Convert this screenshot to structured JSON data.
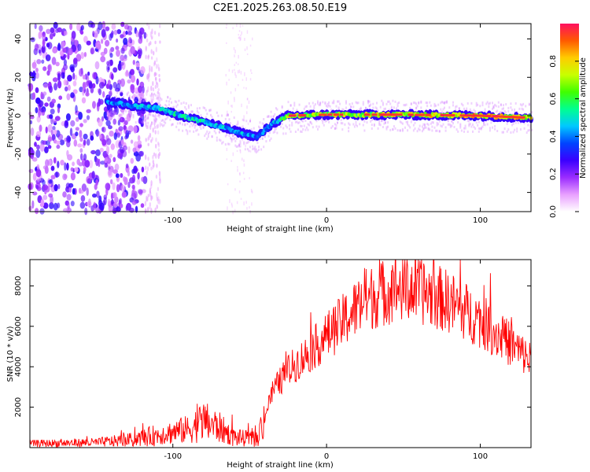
{
  "page_title": "C2E1.2025.263.08.50.E19",
  "chart_data": [
    {
      "type": "heatmap",
      "title": "C2E1.2025.263.08.50.E19",
      "xlabel": "Height of straight line (km)",
      "ylabel": "Frequency (Hz)",
      "xlim": [
        -193,
        133
      ],
      "ylim": [
        -50,
        48
      ],
      "xticks": [
        -100,
        0,
        100
      ],
      "yticks": [
        -40,
        -20,
        0,
        20,
        40
      ],
      "colorbar": {
        "label": "Normalized spectral amplitude",
        "range": [
          0,
          1
        ],
        "ticks": [
          "0.0",
          "0.2",
          "0.4",
          "0.6",
          "0.8"
        ],
        "tick_values": [
          0,
          0.2,
          0.4,
          0.6,
          0.8
        ],
        "colors": [
          "#ffffff",
          "#e9a0ff",
          "#9a2cff",
          "#3a00ff",
          "#0044ff",
          "#00c8ff",
          "#00ff90",
          "#40ff00",
          "#c8ff00",
          "#ffcc00",
          "#ff5a00",
          "#ff1060"
        ]
      },
      "feature_track": {
        "description_points": [
          {
            "x": -140,
            "y": 7,
            "amp": 0.45
          },
          {
            "x": -125,
            "y": 5,
            "amp": 0.5
          },
          {
            "x": -110,
            "y": 4,
            "amp": 0.55
          },
          {
            "x": -95,
            "y": 0,
            "amp": 0.55
          },
          {
            "x": -80,
            "y": -3,
            "amp": 0.55
          },
          {
            "x": -60,
            "y": -8,
            "amp": 0.5
          },
          {
            "x": -45,
            "y": -11,
            "amp": 0.45
          },
          {
            "x": -35,
            "y": -4,
            "amp": 0.45
          },
          {
            "x": -25,
            "y": 0,
            "amp": 0.8
          },
          {
            "x": 0,
            "y": 0.5,
            "amp": 0.75
          },
          {
            "x": 50,
            "y": 0.5,
            "amp": 0.8
          },
          {
            "x": 100,
            "y": 0,
            "amp": 0.9
          },
          {
            "x": 130,
            "y": -1,
            "amp": 0.8
          }
        ]
      }
    },
    {
      "type": "line",
      "xlabel": "Height of straight line (km)",
      "ylabel": "SNR (10 * v/v)",
      "xlim": [
        -193,
        133
      ],
      "ylim": [
        0,
        9300
      ],
      "xticks": [
        -100,
        0,
        100
      ],
      "yticks": [
        2000,
        4000,
        6000,
        8000
      ],
      "color": "#ff0000",
      "series": [
        {
          "name": "SNR",
          "envelope_points": [
            {
              "x": -193,
              "y": 200
            },
            {
              "x": -150,
              "y": 250
            },
            {
              "x": -125,
              "y": 400
            },
            {
              "x": -105,
              "y": 700
            },
            {
              "x": -90,
              "y": 900
            },
            {
              "x": -80,
              "y": 1300
            },
            {
              "x": -70,
              "y": 1000
            },
            {
              "x": -60,
              "y": 500
            },
            {
              "x": -45,
              "y": 400
            },
            {
              "x": -35,
              "y": 2800
            },
            {
              "x": -25,
              "y": 3800
            },
            {
              "x": -10,
              "y": 4800
            },
            {
              "x": 10,
              "y": 6200
            },
            {
              "x": 25,
              "y": 7300
            },
            {
              "x": 45,
              "y": 7900
            },
            {
              "x": 60,
              "y": 7800
            },
            {
              "x": 80,
              "y": 7200
            },
            {
              "x": 100,
              "y": 6300
            },
            {
              "x": 115,
              "y": 5400
            },
            {
              "x": 133,
              "y": 4300
            }
          ]
        }
      ]
    }
  ]
}
